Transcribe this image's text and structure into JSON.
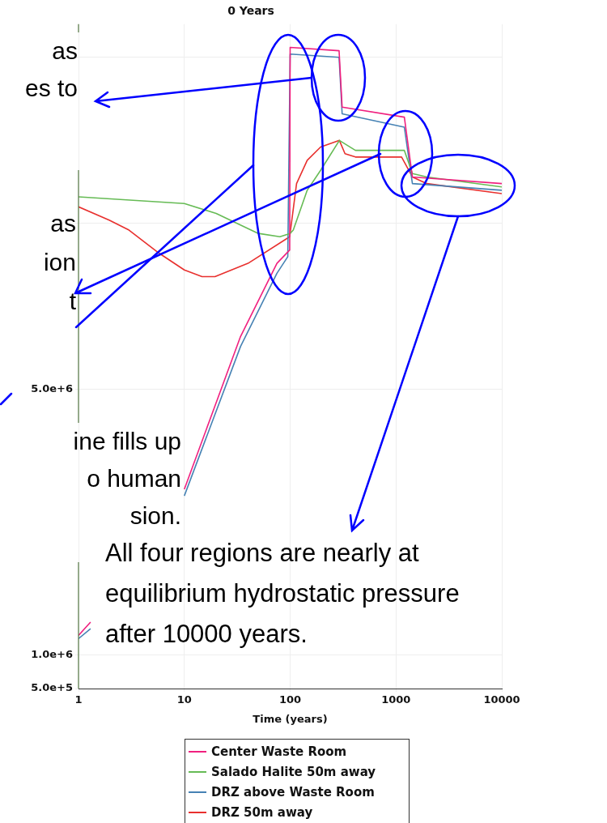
{
  "chart_data": {
    "type": "line",
    "title": "0 Years",
    "xlabel": "Time (years)",
    "annotations": [
      "as\nes to",
      "as\nion\nt",
      "ine fills up\no human\nsion.",
      "All four regions are nearly at\nequilibrium hydrostatic pressure\nafter 10000 years."
    ],
    "log": "x",
    "xlim": [
      1,
      10000
    ],
    "xticks": [
      1,
      10,
      100,
      1000,
      10000
    ],
    "ylim": [
      500000,
      10500000
    ],
    "yticks": [
      {
        "value": 500000,
        "label": "5.0e+5"
      },
      {
        "value": 1000000,
        "label": "1.0e+6"
      },
      {
        "value": 5000000,
        "label": "5.0e+6"
      },
      {
        "value": 7500000,
        "label": null
      },
      {
        "value": 10000000,
        "label": null
      }
    ],
    "grid": true,
    "legend": "bottom",
    "marker": "none",
    "line_style": "solid",
    "series": [
      {
        "name": "Center Waste Room",
        "color": "#f0207f",
        "x": [
          1,
          1.3,
          5,
          10,
          34,
          75,
          99,
          100,
          290,
          310,
          1200,
          1430,
          10000
        ],
        "values": [
          1300000,
          1500000,
          null,
          3500000,
          5800000,
          6900000,
          7100000,
          10150000,
          10100000,
          9250000,
          9100000,
          8200000,
          8100000
        ]
      },
      {
        "name": "Salado Halite 50m away",
        "color": "#66bb55",
        "x": [
          1,
          10,
          20,
          50,
          80,
          100,
          107,
          145,
          194,
          292,
          414,
          700,
          1200,
          1430,
          1960,
          10000
        ],
        "values": [
          7900000,
          7800000,
          7650000,
          7350000,
          7300000,
          7350000,
          7400000,
          8000000,
          8300000,
          8750000,
          8600000,
          8600000,
          8600000,
          8250000,
          8200000,
          8050000
        ]
      },
      {
        "name": "DRZ above Waste Room",
        "color": "#4682b4",
        "x": [
          1,
          1.3,
          5,
          10,
          34,
          75,
          95,
          100,
          290,
          310,
          1200,
          1430,
          10000
        ],
        "values": [
          1250000,
          1400000,
          null,
          3400000,
          5650000,
          6750000,
          7000000,
          10050000,
          10000000,
          9150000,
          8950000,
          8100000,
          8000000
        ]
      },
      {
        "name": "DRZ 50m away",
        "color": "#e8302e",
        "x": [
          1,
          1.95,
          3,
          5.8,
          10,
          14.7,
          19.5,
          40,
          99,
          115,
          145,
          194,
          292,
          330,
          414,
          1130,
          1430,
          1960,
          10000
        ],
        "values": [
          7750000,
          7550000,
          7400000,
          7050000,
          6800000,
          6700000,
          6700000,
          6900000,
          7300000,
          8100000,
          8450000,
          8650000,
          8750000,
          8550000,
          8500000,
          8500000,
          8200000,
          8100000,
          7950000
        ]
      }
    ]
  }
}
